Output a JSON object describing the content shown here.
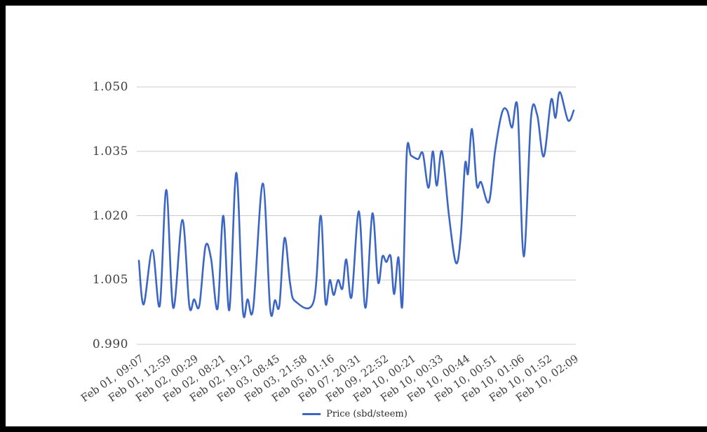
{
  "window": {
    "background": "#ffffff",
    "border_color": "#000000",
    "border_sides": [
      "top",
      "left",
      "bottom"
    ]
  },
  "colors": {
    "grid": "#cccccc",
    "tick_text": "#404040",
    "legend_text": "#2b2b2b",
    "series_blue": "#3B66C4"
  },
  "legend": {
    "label": "Price (sbd/steem)",
    "position": "bottom-center"
  },
  "chart_data": {
    "type": "line",
    "title": "",
    "xlabel": "",
    "ylabel": "",
    "grid": true,
    "legend_position": "bottom",
    "ylim": [
      0.99,
      1.05
    ],
    "y_ticks": [
      "1.050",
      "1.035",
      "1.020",
      "1.005",
      "0.990"
    ],
    "x_ticks": [
      "Feb 01, 09:07",
      "Feb 01, 12:59",
      "Feb 02, 00:29",
      "Feb 02, 08:21",
      "Feb 02, 19:12",
      "Feb 03, 08:45",
      "Feb 03, 21:58",
      "Feb 05, 01:16",
      "Feb 07, 20:31",
      "Feb 09, 22:52",
      "Feb 10, 00:21",
      "Feb 10, 00:33",
      "Feb 10, 00:44",
      "Feb 10, 00:51",
      "Feb 10, 01:06",
      "Feb 10, 01:52",
      "Feb 10, 02:09"
    ],
    "series": [
      {
        "name": "Price (sbd/steem)",
        "color": "#3B66C4",
        "points_format": "[x_fraction_of_axis, price]",
        "points": [
          [
            0.0,
            1.0095
          ],
          [
            0.011,
            0.9993
          ],
          [
            0.031,
            1.012
          ],
          [
            0.048,
            0.999
          ],
          [
            0.063,
            1.026
          ],
          [
            0.079,
            0.9985
          ],
          [
            0.1,
            1.019
          ],
          [
            0.116,
            0.999
          ],
          [
            0.127,
            1.0005
          ],
          [
            0.139,
            0.999
          ],
          [
            0.153,
            1.0128
          ],
          [
            0.166,
            1.01
          ],
          [
            0.181,
            0.9983
          ],
          [
            0.194,
            1.02
          ],
          [
            0.208,
            0.998
          ],
          [
            0.224,
            1.03
          ],
          [
            0.239,
            0.998
          ],
          [
            0.25,
            1.0005
          ],
          [
            0.263,
            0.9985
          ],
          [
            0.285,
            1.0275
          ],
          [
            0.302,
            0.9982
          ],
          [
            0.313,
            1.0003
          ],
          [
            0.323,
            0.999
          ],
          [
            0.335,
            1.0148
          ],
          [
            0.348,
            1.004
          ],
          [
            0.36,
            1.0
          ],
          [
            0.402,
            1.0
          ],
          [
            0.418,
            1.02
          ],
          [
            0.429,
            0.9997
          ],
          [
            0.439,
            1.005
          ],
          [
            0.448,
            1.0015
          ],
          [
            0.458,
            1.005
          ],
          [
            0.468,
            1.003
          ],
          [
            0.477,
            1.0098
          ],
          [
            0.489,
            1.001
          ],
          [
            0.506,
            1.021
          ],
          [
            0.521,
            0.9985
          ],
          [
            0.537,
            1.0205
          ],
          [
            0.55,
            1.0045
          ],
          [
            0.56,
            1.0105
          ],
          [
            0.569,
            1.0092
          ],
          [
            0.579,
            1.0105
          ],
          [
            0.587,
            1.0017
          ],
          [
            0.597,
            1.0103
          ],
          [
            0.606,
            0.9992
          ],
          [
            0.616,
            1.0345
          ],
          [
            0.626,
            1.034
          ],
          [
            0.642,
            1.0332
          ],
          [
            0.653,
            1.0345
          ],
          [
            0.666,
            1.0265
          ],
          [
            0.676,
            1.035
          ],
          [
            0.685,
            1.027
          ],
          [
            0.697,
            1.035
          ],
          [
            0.713,
            1.02
          ],
          [
            0.729,
            1.009
          ],
          [
            0.74,
            1.015
          ],
          [
            0.75,
            1.032
          ],
          [
            0.757,
            1.0298
          ],
          [
            0.766,
            1.0402
          ],
          [
            0.777,
            1.0272
          ],
          [
            0.787,
            1.0278
          ],
          [
            0.805,
            1.0232
          ],
          [
            0.819,
            1.035
          ],
          [
            0.835,
            1.044
          ],
          [
            0.847,
            1.0445
          ],
          [
            0.858,
            1.0405
          ],
          [
            0.871,
            1.045
          ],
          [
            0.885,
            1.0105
          ],
          [
            0.902,
            1.043
          ],
          [
            0.916,
            1.0435
          ],
          [
            0.931,
            1.0338
          ],
          [
            0.948,
            1.047
          ],
          [
            0.958,
            1.0428
          ],
          [
            0.968,
            1.0488
          ],
          [
            0.987,
            1.0422
          ],
          [
            1.0,
            1.0445
          ]
        ]
      }
    ]
  }
}
